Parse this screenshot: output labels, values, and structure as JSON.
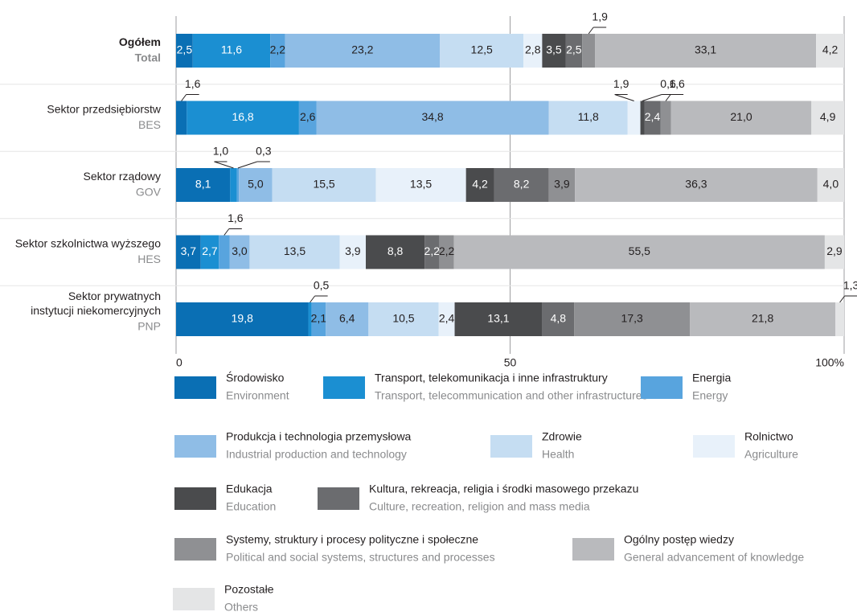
{
  "chart_data": {
    "type": "stacked-bar-horizontal",
    "categories": [
      "Ogółem",
      "Sektor przedsiębiorstw",
      "Sektor rządowy",
      "Sektor szkolnictwa wyższego",
      "Sektor prywatnych instytucji niekomercyjnych"
    ],
    "categories_en": [
      "Total",
      "BES",
      "GOV",
      "HES",
      "PNP"
    ],
    "series": [
      {
        "name": "Środowisko",
        "name_en": "Environment",
        "color": "#0a6fb4",
        "values": [
          2.5,
          1.6,
          8.1,
          3.7,
          19.8
        ],
        "value_labels": [
          "2,5",
          "1,6",
          "8,1",
          "3,7",
          "19,8"
        ]
      },
      {
        "name": "Transport, telekomunikacja i inne infrastruktury",
        "name_en": "Transport, telecommunication and other infrastructures",
        "color": "#1b8fd2",
        "values": [
          11.6,
          16.8,
          1.0,
          2.7,
          0.5
        ],
        "value_labels": [
          "11,6",
          "16,8",
          "1,0",
          "2,7",
          "0,5"
        ]
      },
      {
        "name": "Energia",
        "name_en": "Energy",
        "color": "#58a4de",
        "values": [
          2.2,
          2.6,
          0.3,
          1.6,
          2.1
        ],
        "value_labels": [
          "2,2",
          "2,6",
          "0,3",
          "1,6",
          "2,1"
        ]
      },
      {
        "name": "Produkcja i technologia przemysłowa",
        "name_en": "Industrial production and technology",
        "color": "#8fbde6",
        "values": [
          23.2,
          34.8,
          5.0,
          3.0,
          6.4
        ],
        "value_labels": [
          "23,2",
          "34,8",
          "5,0",
          "3,0",
          "6,4"
        ]
      },
      {
        "name": "Zdrowie",
        "name_en": "Health",
        "color": "#c5ddf2",
        "values": [
          12.5,
          11.8,
          15.5,
          13.5,
          10.5
        ],
        "value_labels": [
          "12,5",
          "11,8",
          "15,5",
          "13,5",
          "10,5"
        ]
      },
      {
        "name": "Rolnictwo",
        "name_en": "Agriculture",
        "color": "#e8f1fa",
        "values": [
          2.8,
          1.9,
          13.5,
          3.9,
          2.4
        ],
        "value_labels": [
          "2,8",
          "1,9",
          "13,5",
          "3,9",
          "2,4"
        ]
      },
      {
        "name": "Edukacja",
        "name_en": "Education",
        "color": "#4a4b4d",
        "values": [
          3.5,
          0.6,
          4.2,
          8.8,
          13.1
        ],
        "value_labels": [
          "3,5",
          "0,6",
          "4,2",
          "8,8",
          "13,1"
        ]
      },
      {
        "name": "Kultura, rekreacja, religia i środki masowego przekazu",
        "name_en": "Culture, recreation, religion and mass media",
        "color": "#6b6c6f",
        "values": [
          2.5,
          2.4,
          8.2,
          2.2,
          4.8
        ],
        "value_labels": [
          "2,5",
          "2,4",
          "8,2",
          "2,2",
          "4,8"
        ]
      },
      {
        "name": "Systemy, struktury i procesy polityczne i społeczne",
        "name_en": "Political and social systems, structures and processes",
        "color": "#8f9093",
        "values": [
          1.9,
          1.6,
          3.9,
          2.2,
          17.3
        ],
        "value_labels": [
          "1,9",
          "1,6",
          "3,9",
          "2,2",
          "17,3"
        ]
      },
      {
        "name": "Ogólny postęp wiedzy",
        "name_en": "General advancement of knowledge",
        "color": "#b9babd",
        "values": [
          33.1,
          21.0,
          36.3,
          55.5,
          21.8
        ],
        "value_labels": [
          "33,1",
          "21,0",
          "36,3",
          "55,5",
          "21,8"
        ]
      },
      {
        "name": "Pozostałe",
        "name_en": "Others",
        "color": "#e4e5e6",
        "values": [
          4.2,
          4.9,
          4.0,
          2.9,
          1.3
        ],
        "value_labels": [
          "4,2",
          "4,9",
          "4,0",
          "2,9",
          "1,3"
        ]
      }
    ],
    "xlim": [
      0,
      100
    ],
    "xticks": [
      0,
      50,
      {
        "value": 100,
        "label": "100%"
      }
    ],
    "grid": true
  }
}
